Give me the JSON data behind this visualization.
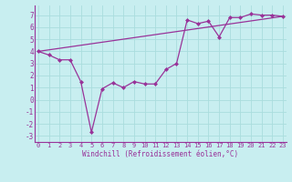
{
  "xlabel": "Windchill (Refroidissement éolien,°C)",
  "bg_color": "#c8eef0",
  "line_color": "#993399",
  "line1_x": [
    0,
    1,
    2,
    3,
    4,
    5,
    6,
    7,
    8,
    9,
    10,
    11,
    12,
    13,
    14,
    15,
    16,
    17,
    18,
    19,
    20,
    21,
    22,
    23
  ],
  "line1_y": [
    4.0,
    3.7,
    3.3,
    3.3,
    1.5,
    -2.7,
    0.9,
    1.4,
    1.0,
    1.5,
    1.3,
    1.3,
    2.5,
    3.0,
    6.6,
    6.3,
    6.5,
    5.2,
    6.8,
    6.8,
    7.1,
    7.0,
    7.0,
    6.9
  ],
  "line2_x": [
    0,
    23
  ],
  "line2_y": [
    4.0,
    6.9
  ],
  "yticks": [
    -3,
    -2,
    -1,
    0,
    1,
    2,
    3,
    4,
    5,
    6,
    7
  ],
  "xticks": [
    0,
    1,
    2,
    3,
    4,
    5,
    6,
    7,
    8,
    9,
    10,
    11,
    12,
    13,
    14,
    15,
    16,
    17,
    18,
    19,
    20,
    21,
    22,
    23
  ],
  "ylim": [
    -3.5,
    7.8
  ],
  "xlim": [
    -0.3,
    23.3
  ],
  "grid_color": "#aadddd",
  "line_color2": "#993399",
  "tick_color": "#993399",
  "label_color": "#993399",
  "spine_color": "#993399",
  "tick_fontsize": 5.0,
  "xlabel_fontsize": 5.5
}
